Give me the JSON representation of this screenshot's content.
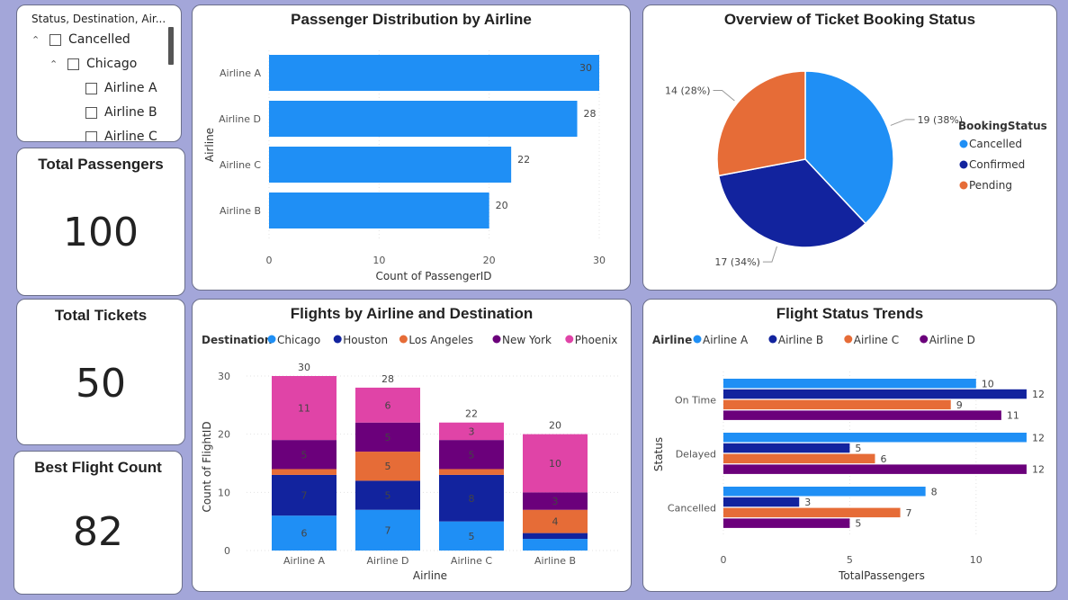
{
  "slicer": {
    "header": "Status, Destination, Air...",
    "items": [
      {
        "label": "Cancelled",
        "level": 0
      },
      {
        "label": "Chicago",
        "level": 1
      },
      {
        "label": "Airline A",
        "level": 2
      },
      {
        "label": "Airline B",
        "level": 2
      },
      {
        "label": "Airline C",
        "level": 2
      }
    ]
  },
  "kpis": [
    {
      "title": "Total Passengers",
      "value": "100"
    },
    {
      "title": "Total Tickets",
      "value": "50"
    },
    {
      "title": "Best Flight Count",
      "value": "82"
    }
  ],
  "chart_data": [
    {
      "id": "passenger-distribution",
      "type": "bar",
      "orientation": "horizontal",
      "title": "Passenger Distribution by Airline",
      "xlabel": "Count of PassengerID",
      "ylabel": "Airline",
      "categories": [
        "Airline A",
        "Airline D",
        "Airline C",
        "Airline B"
      ],
      "values": [
        30,
        28,
        22,
        20
      ],
      "xlim": [
        0,
        30
      ],
      "xticks": [
        0,
        10,
        20,
        30
      ],
      "color": "#1f8ff5"
    },
    {
      "id": "booking-status",
      "type": "pie",
      "title": "Overview of Ticket Booking Status",
      "legend_title": "BookingStatus",
      "legend_position": "right",
      "slices": [
        {
          "label": "Cancelled",
          "value": 19,
          "display": "19 (38%)",
          "color": "#1f8ff5"
        },
        {
          "label": "Confirmed",
          "value": 17,
          "display": "17 (34%)",
          "color": "#12239e"
        },
        {
          "label": "Pending",
          "value": 14,
          "display": "14 (28%)",
          "color": "#e66c37"
        }
      ]
    },
    {
      "id": "flights-by-airline-destination",
      "type": "bar",
      "stacked": true,
      "title": "Flights by Airline and Destination",
      "legend_title": "Destination",
      "legend_position": "top-left",
      "xlabel": "Airline",
      "ylabel": "Count of FlightID",
      "categories": [
        "Airline A",
        "Airline D",
        "Airline C",
        "Airline B"
      ],
      "totals": [
        30,
        28,
        22,
        20
      ],
      "ylim": [
        0,
        30
      ],
      "yticks": [
        0,
        10,
        20,
        30
      ],
      "series": [
        {
          "name": "Chicago",
          "color": "#1f8ff5",
          "values": [
            6,
            7,
            5,
            2
          ]
        },
        {
          "name": "Houston",
          "color": "#12239e",
          "values": [
            7,
            5,
            8,
            1
          ]
        },
        {
          "name": "Los Angeles",
          "color": "#e66c37",
          "values": [
            1,
            5,
            1,
            4
          ]
        },
        {
          "name": "New York",
          "color": "#6b007b",
          "values": [
            5,
            5,
            5,
            3
          ]
        },
        {
          "name": "Phoenix",
          "color": "#e044a7",
          "values": [
            11,
            6,
            3,
            10
          ]
        }
      ]
    },
    {
      "id": "flight-status-trends",
      "type": "bar",
      "orientation": "horizontal",
      "title": "Flight Status Trends",
      "legend_title": "Airline",
      "legend_position": "top-left",
      "xlabel": "TotalPassengers",
      "ylabel": "Status",
      "categories": [
        "On Time",
        "Delayed",
        "Cancelled"
      ],
      "xlim": [
        0,
        12.5
      ],
      "xticks": [
        0,
        5,
        10
      ],
      "series": [
        {
          "name": "Airline A",
          "color": "#1f8ff5",
          "values": [
            10,
            12,
            8
          ]
        },
        {
          "name": "Airline B",
          "color": "#12239e",
          "values": [
            12,
            5,
            3
          ]
        },
        {
          "name": "Airline C",
          "color": "#e66c37",
          "values": [
            9,
            6,
            7
          ]
        },
        {
          "name": "Airline D",
          "color": "#6b007b",
          "values": [
            11,
            12,
            5
          ]
        }
      ]
    }
  ]
}
